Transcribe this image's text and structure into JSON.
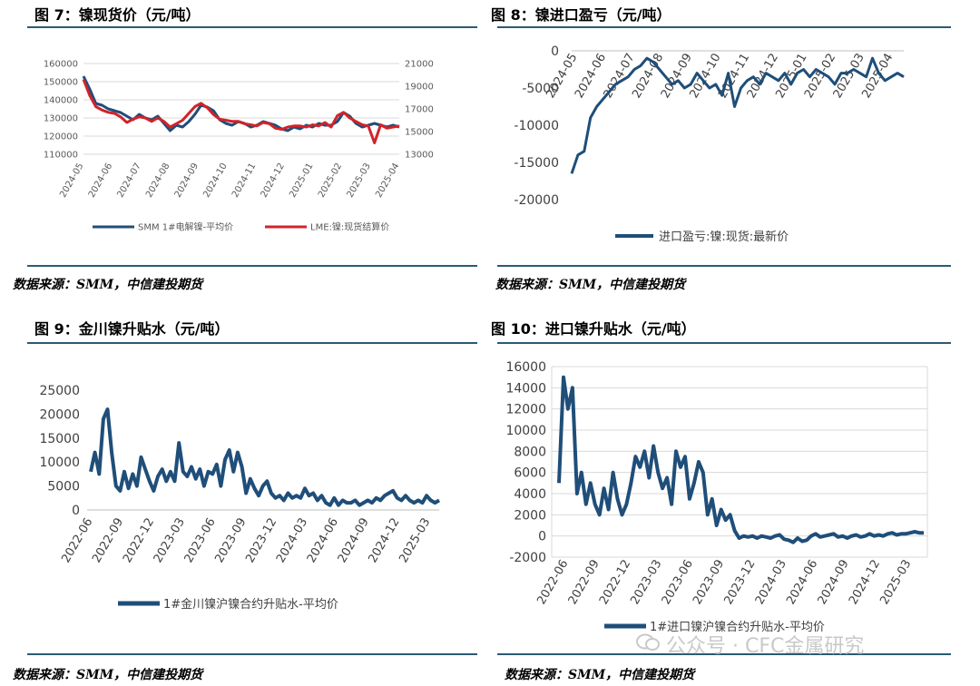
{
  "charts_meta": {
    "c7": {
      "title": "图 7：镍现货价（元/吨）",
      "source": "数据来源：SMM，中信建投期货"
    },
    "c8": {
      "title": "图 8：镍进口盈亏（元/吨）",
      "source": "数据来源：SMM，中信建投期货"
    },
    "c9": {
      "title": "图 9：金川镍升贴水（元/吨）",
      "source": "数据来源：SMM，中信建投期货"
    },
    "c10": {
      "title": "图 10：进口镍升贴水（元/吨）",
      "source": "数据来源：SMM，中信建投期货"
    }
  },
  "watermark": "公众号 · CFC金属研究",
  "colors": {
    "blue": "#1f4e79",
    "red": "#d1232a",
    "rule": "#2b5a73",
    "grid": "#d9d9d9"
  },
  "chart_data": [
    {
      "type": "line",
      "title": "图 7：镍现货价（元/吨）",
      "x_ticks": [
        "2024-05",
        "2024-06",
        "2024-07",
        "2024-08",
        "2024-09",
        "2024-10",
        "2024-11",
        "2024-12",
        "2025-01",
        "2025-02",
        "2025-03",
        "2025-04"
      ],
      "y_left_ticks": [
        "110000",
        "120000",
        "130000",
        "140000",
        "150000",
        "160000"
      ],
      "y_right_ticks": [
        "13000",
        "15000",
        "17000",
        "19000",
        "21000"
      ],
      "y_left_lim": [
        110000,
        160000
      ],
      "y_right_lim": [
        13000,
        21000
      ],
      "series": [
        {
          "name": "SMM 1#电解镍-平均价",
          "axis": "left",
          "color": "#1f4e79",
          "values": [
            153000,
            146000,
            138000,
            137000,
            135000,
            134000,
            133000,
            131000,
            129000,
            132000,
            130000,
            129000,
            131000,
            127000,
            123000,
            126000,
            125000,
            128000,
            132000,
            137000,
            136000,
            134000,
            129000,
            127000,
            126000,
            128000,
            127000,
            125000,
            126000,
            128000,
            127000,
            126000,
            124000,
            123000,
            125000,
            124000,
            126000,
            125000,
            127000,
            126000,
            126000,
            128000,
            133000,
            131000,
            127000,
            125000,
            126000,
            127000,
            126000,
            125000,
            126000,
            125000
          ]
        },
        {
          "name": "LME:镍:现货结算价",
          "axis": "right",
          "color": "#d1232a",
          "values": [
            19600,
            18200,
            17200,
            16900,
            16700,
            16600,
            16300,
            15800,
            16100,
            16300,
            16200,
            15900,
            16200,
            15900,
            15400,
            15700,
            16000,
            16600,
            17200,
            17500,
            17100,
            16500,
            16100,
            16000,
            15900,
            15900,
            15700,
            15600,
            15500,
            15800,
            15700,
            15300,
            15200,
            15400,
            15500,
            15500,
            15400,
            15600,
            15500,
            15800,
            15400,
            16400,
            16700,
            16200,
            15900,
            15600,
            15500,
            14000,
            15600,
            15300,
            15400,
            15500
          ]
        }
      ]
    },
    {
      "type": "line",
      "title": "图 8：镍进口盈亏（元/吨）",
      "x_ticks": [
        "2024-05",
        "2024-06",
        "2024-07",
        "2024-08",
        "2024-09",
        "2024-10",
        "2024-11",
        "2024-12",
        "2025-01",
        "2025-02",
        "2025-03",
        "2025-04"
      ],
      "y_ticks": [
        "0",
        "-5000",
        "-10000",
        "-15000",
        "-20000"
      ],
      "ylim": [
        -20000,
        0
      ],
      "series": [
        {
          "name": "进口盈亏:镍:现货:最新价",
          "color": "#1f4e79",
          "values": [
            -16500,
            -14000,
            -13500,
            -9000,
            -7500,
            -6500,
            -5500,
            -4500,
            -4000,
            -3500,
            -2500,
            -2000,
            -1000,
            -1500,
            -2500,
            -3500,
            -4500,
            -4000,
            -5000,
            -4500,
            -3000,
            -4000,
            -5000,
            -4500,
            -6000,
            -3000,
            -7500,
            -5000,
            -4000,
            -3500,
            -4500,
            -3000,
            -3500,
            -4000,
            -3000,
            -4500,
            -3000,
            -2500,
            -3500,
            -2500,
            -3000,
            -3500,
            -4500,
            -3000,
            -3000,
            -2500,
            -3000,
            -3500,
            -1000,
            -3000,
            -4000,
            -3500,
            -3000,
            -3500
          ]
        }
      ]
    },
    {
      "type": "line",
      "title": "图 9：金川镍升贴水（元/吨）",
      "x_ticks": [
        "2022-06",
        "2022-09",
        "2022-12",
        "2023-03",
        "2023-06",
        "2023-09",
        "2023-12",
        "2024-03",
        "2024-06",
        "2024-09",
        "2024-12",
        "2025-03"
      ],
      "y_ticks": [
        "0",
        "5000",
        "10000",
        "15000",
        "20000",
        "25000"
      ],
      "ylim": [
        0,
        25000
      ],
      "series": [
        {
          "name": "1#金川镍沪镍合约升贴水-平均价",
          "color": "#1f4e79",
          "values": [
            8000,
            12000,
            7500,
            19000,
            21000,
            12000,
            5000,
            4000,
            8000,
            4500,
            7500,
            5000,
            11000,
            8500,
            6000,
            4000,
            7000,
            8500,
            6000,
            8000,
            6000,
            14000,
            8000,
            7000,
            9000,
            6500,
            8500,
            5000,
            8000,
            7500,
            9500,
            5000,
            10500,
            12500,
            8000,
            12000,
            9000,
            3500,
            6500,
            4500,
            3000,
            5000,
            6000,
            3500,
            2500,
            3000,
            2000,
            3500,
            2500,
            3000,
            2500,
            4500,
            3000,
            3500,
            2000,
            3000,
            1500,
            1000,
            2500,
            1000,
            2000,
            1500,
            1500,
            2000,
            1000,
            1500,
            2000,
            1500,
            2500,
            2000,
            3000,
            3500,
            4000,
            2500,
            2000,
            3000,
            2000,
            1500,
            2000,
            1500,
            3000,
            2000,
            1500,
            2000
          ]
        }
      ]
    },
    {
      "type": "line",
      "title": "图 10：进口镍升贴水（元/吨）",
      "x_ticks": [
        "2022-06",
        "2022-09",
        "2022-12",
        "2023-03",
        "2023-06",
        "2023-09",
        "2023-12",
        "2024-03",
        "2024-06",
        "2024-09",
        "2024-12",
        "2025-03"
      ],
      "y_ticks": [
        "-2000",
        "0",
        "2000",
        "4000",
        "6000",
        "8000",
        "10000",
        "12000",
        "14000",
        "16000"
      ],
      "ylim": [
        -2000,
        16000
      ],
      "series": [
        {
          "name": "1#进口镍沪镍合约升贴水-平均价",
          "color": "#1f4e79",
          "values": [
            5000,
            15000,
            12000,
            14000,
            4000,
            6000,
            3000,
            5000,
            3000,
            2000,
            4500,
            2500,
            6000,
            3500,
            2000,
            3000,
            5000,
            7500,
            6500,
            8000,
            5500,
            8500,
            6000,
            4500,
            5500,
            3000,
            8000,
            6500,
            7500,
            3500,
            5000,
            7000,
            6000,
            2000,
            3500,
            1000,
            2500,
            1500,
            2000,
            500,
            -200,
            0,
            -100,
            0,
            -200,
            0,
            -100,
            -200,
            0,
            100,
            -300,
            -400,
            -600,
            -200,
            -500,
            -400,
            0,
            200,
            -100,
            0,
            100,
            200,
            -100,
            0,
            -200,
            0,
            100,
            -100,
            0,
            200,
            0,
            100,
            0,
            200,
            300,
            100,
            200,
            200,
            300,
            400,
            300,
            300
          ]
        }
      ]
    }
  ]
}
